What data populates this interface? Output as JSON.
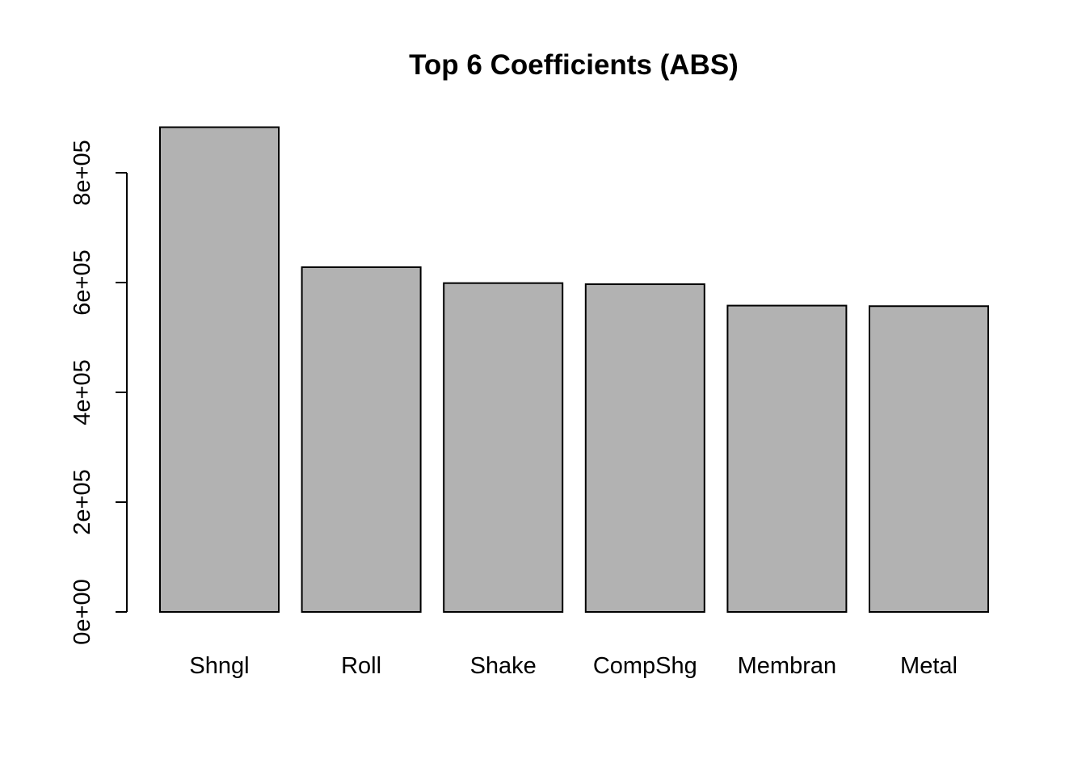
{
  "chart_data": {
    "type": "bar",
    "title": "Top 6 Coefficients (ABS)",
    "xlabel": "",
    "ylabel": "",
    "categories": [
      "Shngl",
      "Roll",
      "Shake",
      "CompShg",
      "Membran",
      "Metal"
    ],
    "values": [
      883000,
      628000,
      599000,
      597000,
      558000,
      557000
    ],
    "ylim": [
      0,
      880000
    ],
    "yticks": [
      0,
      200000,
      400000,
      600000,
      800000
    ],
    "ytick_labels": [
      "0e+00",
      "2e+05",
      "4e+05",
      "6e+05",
      "8e+05"
    ],
    "bar_color": "#b2b2b2",
    "bar_border_color": "#000000",
    "grid": false,
    "legend": "none"
  }
}
